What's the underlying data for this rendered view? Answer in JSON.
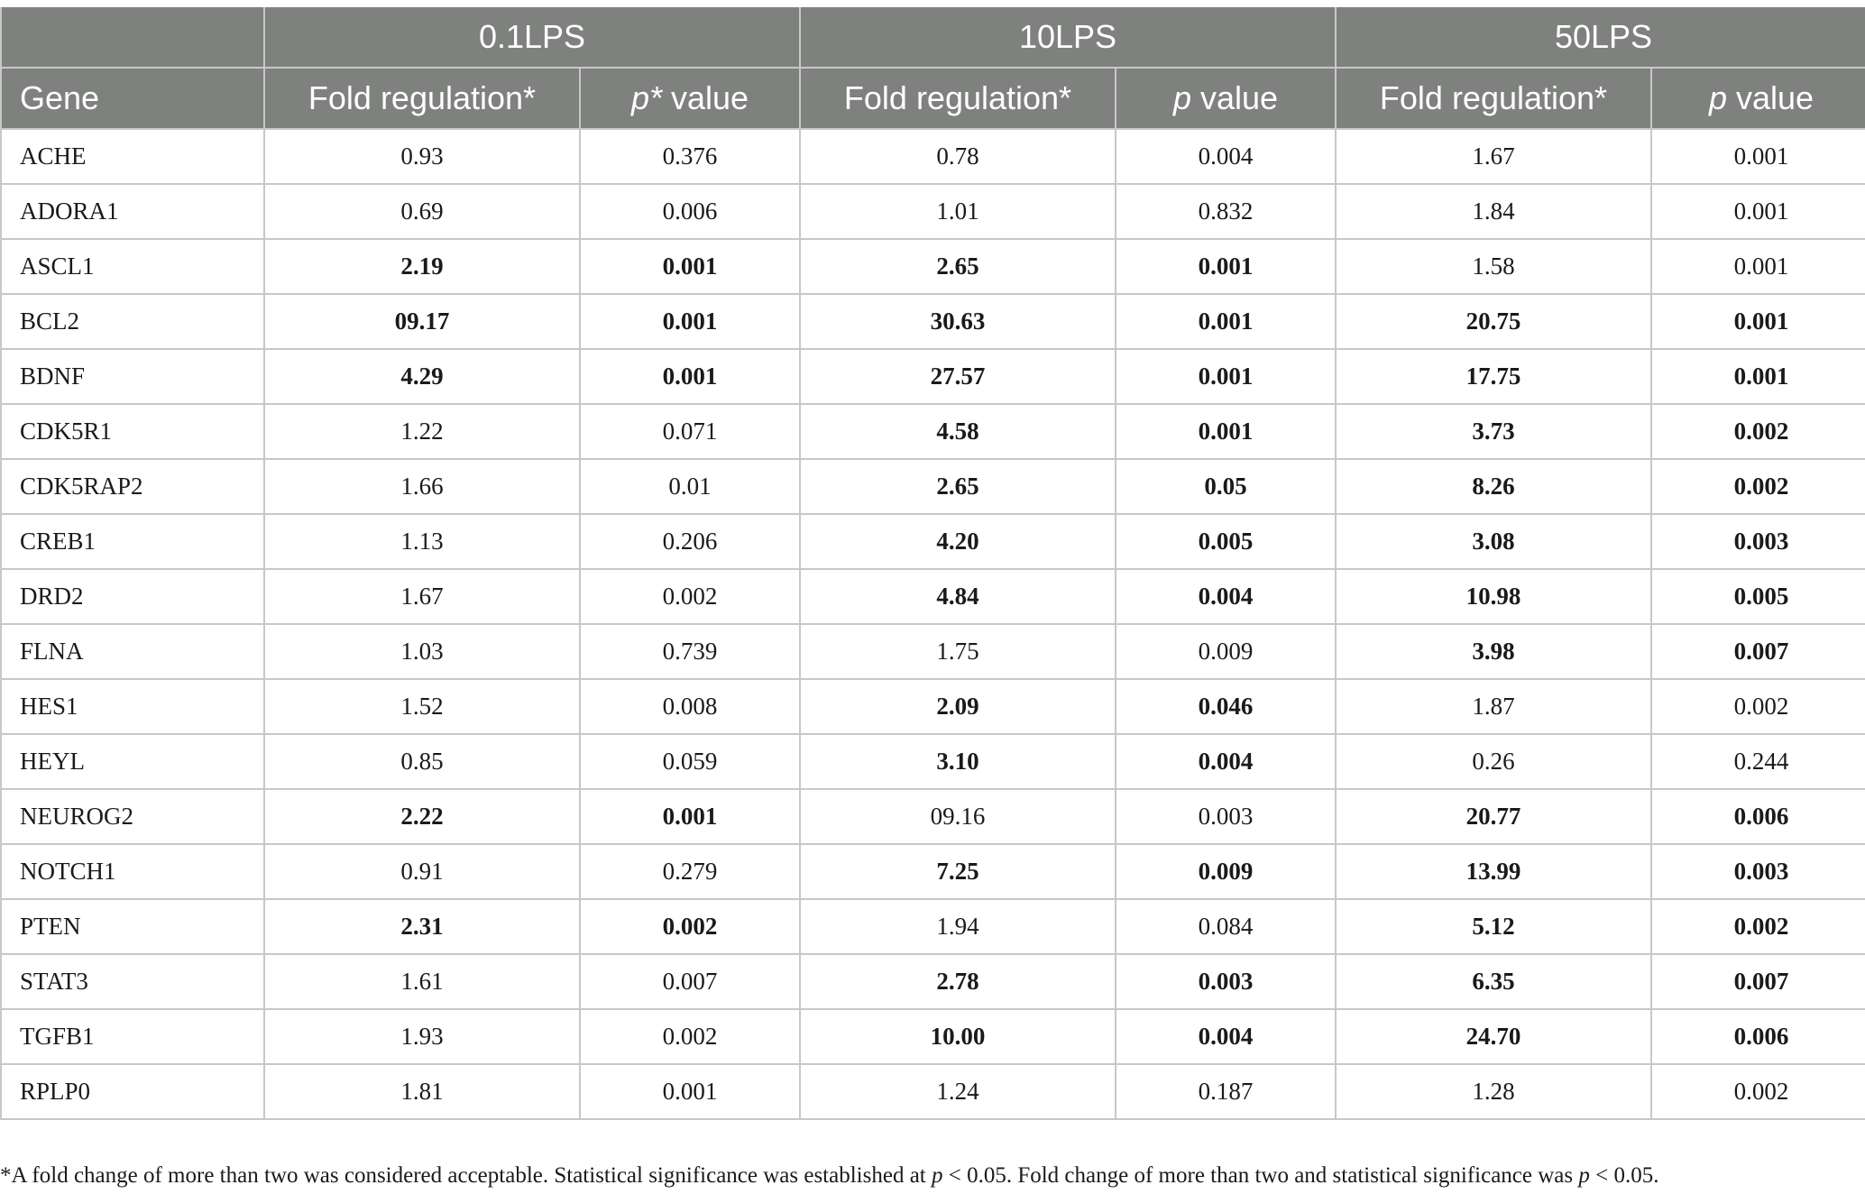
{
  "table": {
    "group_headers": [
      "0.1LPS",
      "10LPS",
      "50LPS"
    ],
    "sub_headers": {
      "gene": "Gene",
      "g1_fold": "Fold regulation*",
      "g1_p_italic": "p*",
      "g1_p_rest": " value",
      "g2_fold": "Fold regulation*",
      "g2_p_italic": "p",
      "g2_p_rest": " value",
      "g3_fold": "Fold regulation*",
      "g3_p_italic": "p",
      "g3_p_rest": " value"
    },
    "rows": [
      {
        "gene": "ACHE",
        "cells": [
          {
            "v": "0.93",
            "b": false
          },
          {
            "v": "0.376",
            "b": false
          },
          {
            "v": "0.78",
            "b": false
          },
          {
            "v": "0.004",
            "b": false
          },
          {
            "v": "1.67",
            "b": false
          },
          {
            "v": "0.001",
            "b": false
          }
        ]
      },
      {
        "gene": "ADORA1",
        "cells": [
          {
            "v": "0.69",
            "b": false
          },
          {
            "v": "0.006",
            "b": false
          },
          {
            "v": "1.01",
            "b": false
          },
          {
            "v": "0.832",
            "b": false
          },
          {
            "v": "1.84",
            "b": false
          },
          {
            "v": "0.001",
            "b": false
          }
        ]
      },
      {
        "gene": "ASCL1",
        "cells": [
          {
            "v": "2.19",
            "b": true
          },
          {
            "v": "0.001",
            "b": true
          },
          {
            "v": "2.65",
            "b": true
          },
          {
            "v": "0.001",
            "b": true
          },
          {
            "v": "1.58",
            "b": false
          },
          {
            "v": "0.001",
            "b": false
          }
        ]
      },
      {
        "gene": "BCL2",
        "cells": [
          {
            "v": "09.17",
            "b": true
          },
          {
            "v": "0.001",
            "b": true
          },
          {
            "v": "30.63",
            "b": true
          },
          {
            "v": "0.001",
            "b": true
          },
          {
            "v": "20.75",
            "b": true
          },
          {
            "v": "0.001",
            "b": true
          }
        ]
      },
      {
        "gene": "BDNF",
        "cells": [
          {
            "v": "4.29",
            "b": true
          },
          {
            "v": "0.001",
            "b": true
          },
          {
            "v": "27.57",
            "b": true
          },
          {
            "v": "0.001",
            "b": true
          },
          {
            "v": "17.75",
            "b": true
          },
          {
            "v": "0.001",
            "b": true
          }
        ]
      },
      {
        "gene": "CDK5R1",
        "cells": [
          {
            "v": "1.22",
            "b": false
          },
          {
            "v": "0.071",
            "b": false
          },
          {
            "v": "4.58",
            "b": true
          },
          {
            "v": "0.001",
            "b": true
          },
          {
            "v": "3.73",
            "b": true
          },
          {
            "v": "0.002",
            "b": true
          }
        ]
      },
      {
        "gene": "CDK5RAP2",
        "cells": [
          {
            "v": "1.66",
            "b": false
          },
          {
            "v": "0.01",
            "b": false
          },
          {
            "v": "2.65",
            "b": true
          },
          {
            "v": "0.05",
            "b": true
          },
          {
            "v": "8.26",
            "b": true
          },
          {
            "v": "0.002",
            "b": true
          }
        ]
      },
      {
        "gene": "CREB1",
        "cells": [
          {
            "v": "1.13",
            "b": false
          },
          {
            "v": "0.206",
            "b": false
          },
          {
            "v": "4.20",
            "b": true
          },
          {
            "v": "0.005",
            "b": true
          },
          {
            "v": "3.08",
            "b": true
          },
          {
            "v": "0.003",
            "b": true
          }
        ]
      },
      {
        "gene": "DRD2",
        "cells": [
          {
            "v": "1.67",
            "b": false
          },
          {
            "v": "0.002",
            "b": false
          },
          {
            "v": "4.84",
            "b": true
          },
          {
            "v": "0.004",
            "b": true
          },
          {
            "v": "10.98",
            "b": true
          },
          {
            "v": "0.005",
            "b": true
          }
        ]
      },
      {
        "gene": "FLNA",
        "cells": [
          {
            "v": "1.03",
            "b": false
          },
          {
            "v": "0.739",
            "b": false
          },
          {
            "v": "1.75",
            "b": false
          },
          {
            "v": "0.009",
            "b": false
          },
          {
            "v": "3.98",
            "b": true
          },
          {
            "v": "0.007",
            "b": true
          }
        ]
      },
      {
        "gene": "HES1",
        "cells": [
          {
            "v": "1.52",
            "b": false
          },
          {
            "v": "0.008",
            "b": false
          },
          {
            "v": "2.09",
            "b": true
          },
          {
            "v": "0.046",
            "b": true
          },
          {
            "v": "1.87",
            "b": false
          },
          {
            "v": "0.002",
            "b": false
          }
        ]
      },
      {
        "gene": "HEYL",
        "cells": [
          {
            "v": "0.85",
            "b": false
          },
          {
            "v": "0.059",
            "b": false
          },
          {
            "v": "3.10",
            "b": true
          },
          {
            "v": "0.004",
            "b": true
          },
          {
            "v": "0.26",
            "b": false
          },
          {
            "v": "0.244",
            "b": false
          }
        ]
      },
      {
        "gene": "NEUROG2",
        "cells": [
          {
            "v": "2.22",
            "b": true
          },
          {
            "v": "0.001",
            "b": true
          },
          {
            "v": "09.16",
            "b": false
          },
          {
            "v": "0.003",
            "b": false
          },
          {
            "v": "20.77",
            "b": true
          },
          {
            "v": "0.006",
            "b": true
          }
        ]
      },
      {
        "gene": "NOTCH1",
        "cells": [
          {
            "v": "0.91",
            "b": false
          },
          {
            "v": "0.279",
            "b": false
          },
          {
            "v": "7.25",
            "b": true
          },
          {
            "v": "0.009",
            "b": true
          },
          {
            "v": "13.99",
            "b": true
          },
          {
            "v": "0.003",
            "b": true
          }
        ]
      },
      {
        "gene": "PTEN",
        "cells": [
          {
            "v": "2.31",
            "b": true
          },
          {
            "v": "0.002",
            "b": true
          },
          {
            "v": "1.94",
            "b": false
          },
          {
            "v": "0.084",
            "b": false
          },
          {
            "v": "5.12",
            "b": true
          },
          {
            "v": "0.002",
            "b": true
          }
        ]
      },
      {
        "gene": "STAT3",
        "cells": [
          {
            "v": "1.61",
            "b": false
          },
          {
            "v": "0.007",
            "b": false
          },
          {
            "v": "2.78",
            "b": true
          },
          {
            "v": "0.003",
            "b": true
          },
          {
            "v": "6.35",
            "b": true
          },
          {
            "v": "0.007",
            "b": true
          }
        ]
      },
      {
        "gene": "TGFB1",
        "cells": [
          {
            "v": "1.93",
            "b": false
          },
          {
            "v": "0.002",
            "b": false
          },
          {
            "v": "10.00",
            "b": true
          },
          {
            "v": "0.004",
            "b": true
          },
          {
            "v": "24.70",
            "b": true
          },
          {
            "v": "0.006",
            "b": true
          }
        ]
      },
      {
        "gene": "RPLP0",
        "cells": [
          {
            "v": "1.81",
            "b": false
          },
          {
            "v": "0.001",
            "b": false
          },
          {
            "v": "1.24",
            "b": false
          },
          {
            "v": "0.187",
            "b": false
          },
          {
            "v": "1.28",
            "b": false
          },
          {
            "v": "0.002",
            "b": false
          }
        ]
      }
    ]
  },
  "footnote": {
    "part1": "*A fold change of more than two was considered acceptable. Statistical significance was established at ",
    "p1": "p",
    "part2": " < 0.05. Fold change of more than two and statistical significance was ",
    "p2": "p",
    "part3": " < 0.05."
  },
  "colors": {
    "header_bg": "#7f817f",
    "header_text": "#ffffff",
    "grid": "#c8c8c8",
    "body_text": "#1a1a1a"
  }
}
